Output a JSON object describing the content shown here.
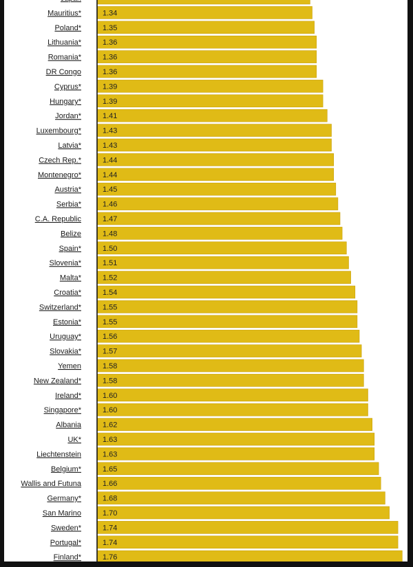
{
  "chart_data": {
    "type": "bar",
    "orientation": "horizontal",
    "bar_color": "#e0bb16",
    "bar_border_color": "#c9a10a",
    "axis_line_color": "#111111",
    "categories": [
      "Japan",
      "Mauritius*",
      "Poland*",
      "Lithuania*",
      "Romania*",
      "DR Congo",
      "Cyprus*",
      "Hungary*",
      "Jordan*",
      "Luxembourg*",
      "Latvia*",
      "Czech Rep.*",
      "Montenegro*",
      "Austria*",
      "Serbia*",
      "C.A. Republic",
      "Belize",
      "Spain*",
      "Slovenia*",
      "Malta*",
      "Croatia*",
      "Switzerland*",
      "Estonia*",
      "Uruguay*",
      "Slovakia*",
      "Yemen",
      "New Zealand*",
      "Ireland*",
      "Singapore*",
      "Albania",
      "UK*",
      "Liechtenstein",
      "Belgium*",
      "Wallis and Futuna",
      "Germany*",
      "San Marino",
      "Sweden*",
      "Portugal*",
      "Finland*"
    ],
    "values": [
      1.33,
      1.34,
      1.35,
      1.36,
      1.36,
      1.36,
      1.39,
      1.39,
      1.41,
      1.43,
      1.43,
      1.44,
      1.44,
      1.45,
      1.46,
      1.47,
      1.48,
      1.5,
      1.51,
      1.52,
      1.54,
      1.55,
      1.55,
      1.56,
      1.57,
      1.58,
      1.58,
      1.6,
      1.6,
      1.62,
      1.63,
      1.63,
      1.65,
      1.66,
      1.68,
      1.7,
      1.74,
      1.74,
      1.76
    ],
    "value_labels": [
      "",
      "1.34",
      "1.35",
      "1.36",
      "1.36",
      "1.36",
      "1.39",
      "1.39",
      "1.41",
      "1.43",
      "1.43",
      "1.44",
      "1.44",
      "1.45",
      "1.46",
      "1.47",
      "1.48",
      "1.50",
      "1.51",
      "1.52",
      "1.54",
      "1.55",
      "1.55",
      "1.56",
      "1.57",
      "1.58",
      "1.58",
      "1.60",
      "1.60",
      "1.62",
      "1.63",
      "1.63",
      "1.65",
      "1.66",
      "1.68",
      "1.70",
      "1.74",
      "1.74",
      "1.76"
    ],
    "title": "",
    "xlabel": "",
    "ylabel": "",
    "grid": false
  }
}
